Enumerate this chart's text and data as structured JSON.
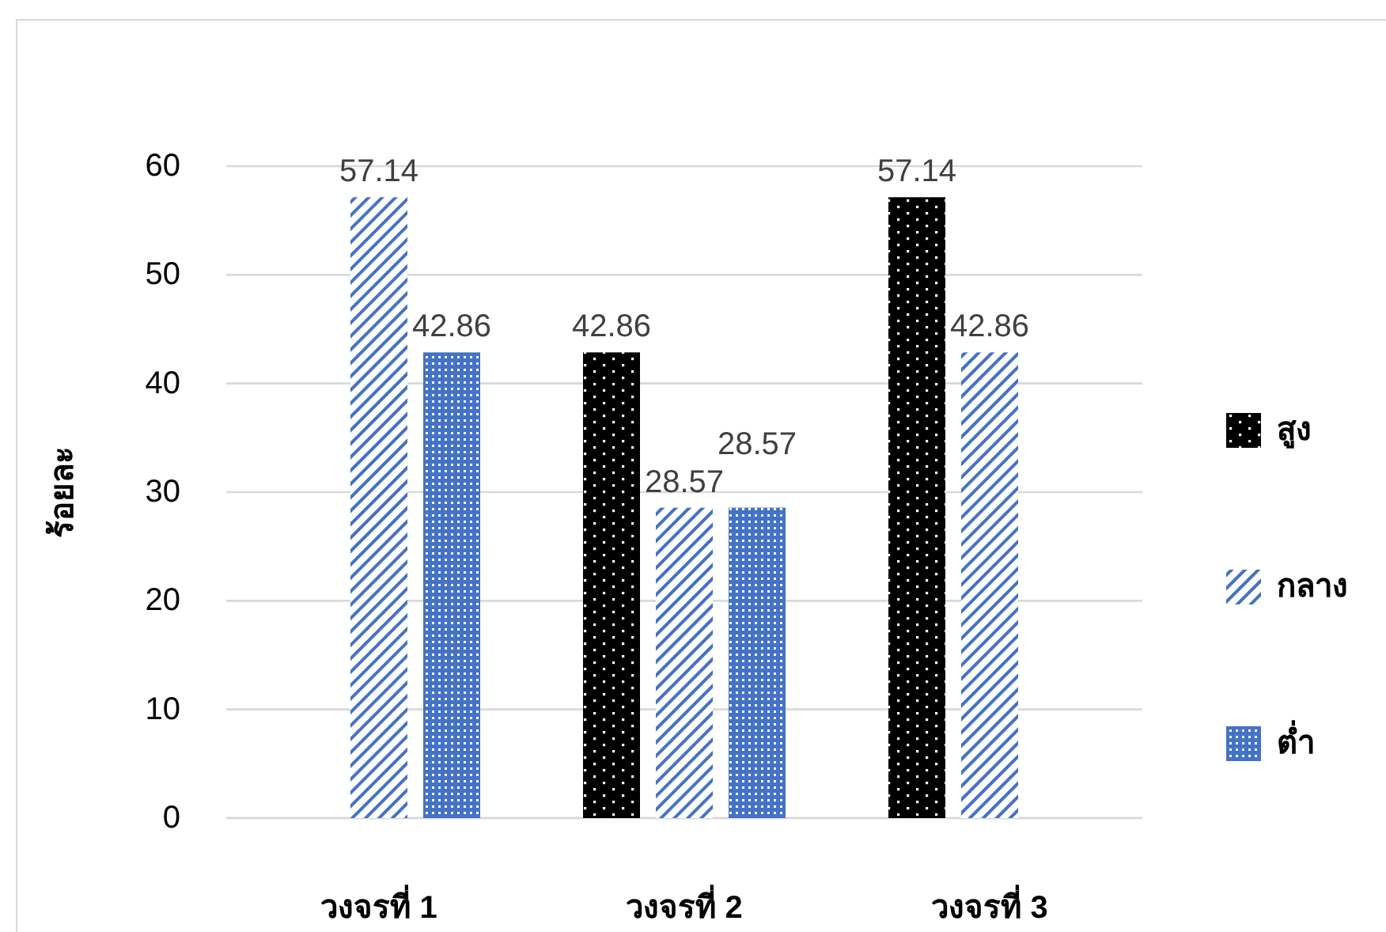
{
  "chart_data": {
    "type": "bar",
    "ylabel": "ร้อยละ",
    "categories": [
      "วงจรที่ 1",
      "วงจรที่ 2",
      "วงจรที่ 3"
    ],
    "series": [
      {
        "name": "สูง",
        "color": "#000000",
        "values": [
          null,
          42.86,
          57.14
        ]
      },
      {
        "name": "กลาง",
        "color": "#4472c4",
        "values": [
          57.14,
          28.57,
          42.86
        ]
      },
      {
        "name": "ต่ำ",
        "color": "#4472c4",
        "values": [
          42.86,
          28.57,
          null
        ]
      }
    ],
    "ylim": [
      0,
      60
    ],
    "yticks": [
      0,
      10,
      20,
      30,
      40,
      50,
      60
    ],
    "grid": "y",
    "legend": "right",
    "data_labels": true
  }
}
